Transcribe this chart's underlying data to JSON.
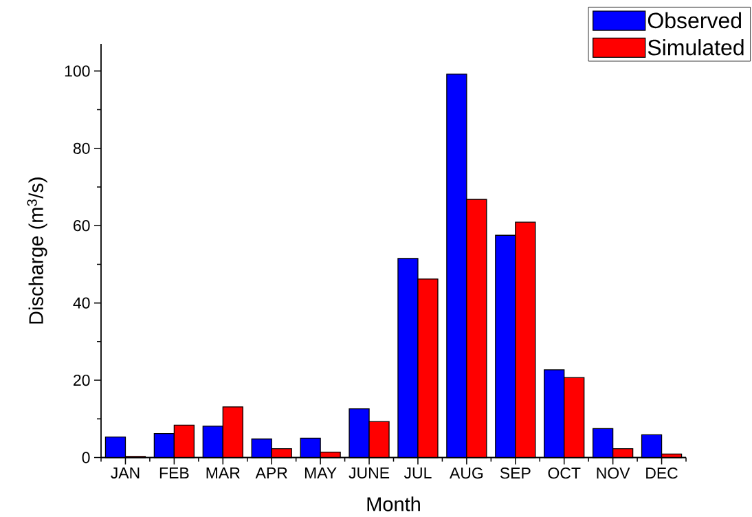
{
  "chart_data": {
    "type": "bar",
    "xlabel": "Month",
    "ylabel": "Discharge (m$^{3}$/s)",
    "categories": [
      "JAN",
      "FEB",
      "MAR",
      "APR",
      "MAY",
      "JUNE",
      "JUL",
      "AUG",
      "SEP",
      "OCT",
      "NOV",
      "DEC"
    ],
    "series": [
      {
        "name": "Observed",
        "color": "#0000ff",
        "values": [
          5.3,
          6.2,
          8.1,
          4.8,
          5.0,
          12.6,
          51.5,
          99.2,
          57.5,
          22.7,
          7.5,
          5.9
        ]
      },
      {
        "name": "Simulated",
        "color": "#ff0000",
        "values": [
          0.3,
          8.4,
          13.1,
          2.3,
          1.4,
          9.3,
          46.2,
          66.8,
          60.9,
          20.7,
          2.3,
          0.9
        ]
      }
    ],
    "ylim": [
      0,
      107
    ],
    "yticks": [
      0,
      20,
      40,
      60,
      80,
      100
    ],
    "legend": "top right"
  }
}
